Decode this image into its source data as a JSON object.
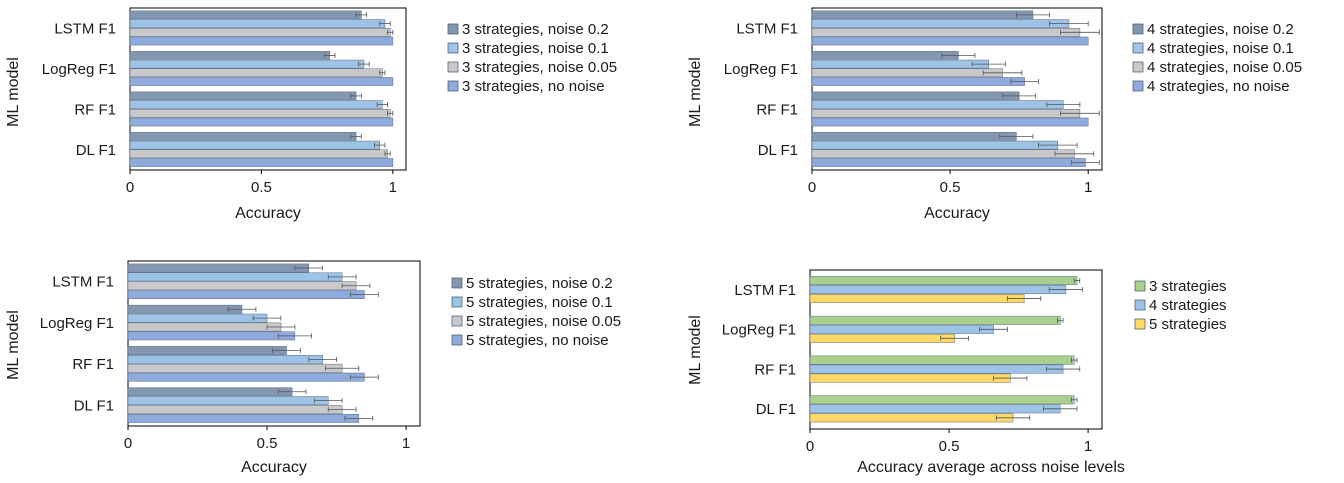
{
  "chart_data": [
    {
      "type": "bar",
      "orientation": "horizontal",
      "categories": [
        "LSTM F1",
        "LogReg F1",
        "RF F1",
        "DL F1"
      ],
      "xlabel": "Accuracy",
      "ylabel": "ML model",
      "xlim": [
        0,
        1.05
      ],
      "xticks": [
        "0",
        "0.5",
        "1"
      ],
      "legend_position": "right",
      "series": [
        {
          "name": "3 strategies, noise 0.2",
          "color": "#8497b0",
          "values": [
            0.88,
            0.76,
            0.86,
            0.86
          ],
          "errors": [
            0.02,
            0.02,
            0.02,
            0.02
          ]
        },
        {
          "name": "3 strategies, noise 0.1",
          "color": "#9dc3e6",
          "values": [
            0.97,
            0.89,
            0.96,
            0.95
          ],
          "errors": [
            0.02,
            0.02,
            0.02,
            0.02
          ]
        },
        {
          "name": "3 strategies, noise 0.05",
          "color": "#c9c9c9",
          "values": [
            0.99,
            0.96,
            0.99,
            0.98
          ],
          "errors": [
            0.01,
            0.01,
            0.01,
            0.01
          ]
        },
        {
          "name": "3 strategies, no noise",
          "color": "#8faadc",
          "values": [
            1.0,
            1.0,
            1.0,
            1.0
          ],
          "errors": [
            0,
            0,
            0,
            0
          ]
        }
      ]
    },
    {
      "type": "bar",
      "orientation": "horizontal",
      "categories": [
        "LSTM F1",
        "LogReg F1",
        "RF F1",
        "DL F1"
      ],
      "xlabel": "Accuracy",
      "ylabel": "ML model",
      "xlim": [
        0,
        1.05
      ],
      "xticks": [
        "0",
        "0.5",
        "1"
      ],
      "legend_position": "right",
      "series": [
        {
          "name": "4 strategies, noise 0.2",
          "color": "#8497b0",
          "values": [
            0.8,
            0.53,
            0.75,
            0.74
          ],
          "errors": [
            0.06,
            0.06,
            0.06,
            0.06
          ]
        },
        {
          "name": "4 strategies, noise 0.1",
          "color": "#9dc3e6",
          "values": [
            0.93,
            0.64,
            0.91,
            0.89
          ],
          "errors": [
            0.07,
            0.06,
            0.06,
            0.07
          ]
        },
        {
          "name": "4 strategies, noise 0.05",
          "color": "#c9c9c9",
          "values": [
            0.97,
            0.69,
            0.97,
            0.95
          ],
          "errors": [
            0.07,
            0.07,
            0.07,
            0.07
          ]
        },
        {
          "name": "4 strategies, no noise",
          "color": "#8faadc",
          "values": [
            1.0,
            0.77,
            1.0,
            0.99
          ],
          "errors": [
            0,
            0.05,
            0,
            0.05
          ]
        }
      ]
    },
    {
      "type": "bar",
      "orientation": "horizontal",
      "categories": [
        "LSTM F1",
        "LogReg F1",
        "RF F1",
        "DL F1"
      ],
      "xlabel": "Accuracy",
      "ylabel": "ML model",
      "xlim": [
        0,
        1.05
      ],
      "xticks": [
        "0",
        "0.5",
        "1"
      ],
      "legend_position": "right",
      "series": [
        {
          "name": "5 strategies, noise 0.2",
          "color": "#8497b0",
          "values": [
            0.65,
            0.41,
            0.57,
            0.59
          ],
          "errors": [
            0.05,
            0.05,
            0.05,
            0.05
          ]
        },
        {
          "name": "5 strategies, noise 0.1",
          "color": "#9dc3e6",
          "values": [
            0.77,
            0.5,
            0.7,
            0.72
          ],
          "errors": [
            0.05,
            0.05,
            0.05,
            0.05
          ]
        },
        {
          "name": "5 strategies, noise 0.05",
          "color": "#c9c9c9",
          "values": [
            0.82,
            0.55,
            0.77,
            0.77
          ],
          "errors": [
            0.05,
            0.05,
            0.06,
            0.05
          ]
        },
        {
          "name": "5 strategies, no noise",
          "color": "#8faadc",
          "values": [
            0.85,
            0.6,
            0.85,
            0.83
          ],
          "errors": [
            0.05,
            0.06,
            0.05,
            0.05
          ]
        }
      ]
    },
    {
      "type": "bar",
      "orientation": "horizontal",
      "categories": [
        "LSTM F1",
        "LogReg F1",
        "RF F1",
        "DL F1"
      ],
      "xlabel": "Accuracy average across noise levels",
      "ylabel": "ML model",
      "xlim": [
        0,
        1.05
      ],
      "xticks": [
        "0",
        "0.5",
        "1"
      ],
      "legend_position": "right",
      "series": [
        {
          "name": "3 strategies",
          "color": "#a9d18e",
          "values": [
            0.96,
            0.9,
            0.95,
            0.95
          ],
          "errors": [
            0.01,
            0.01,
            0.01,
            0.01
          ]
        },
        {
          "name": "4 strategies",
          "color": "#9dc3e6",
          "values": [
            0.92,
            0.66,
            0.91,
            0.9
          ],
          "errors": [
            0.06,
            0.05,
            0.06,
            0.06
          ]
        },
        {
          "name": "5 strategies",
          "color": "#ffd966",
          "values": [
            0.77,
            0.52,
            0.72,
            0.73
          ],
          "errors": [
            0.06,
            0.05,
            0.06,
            0.06
          ]
        }
      ]
    }
  ]
}
